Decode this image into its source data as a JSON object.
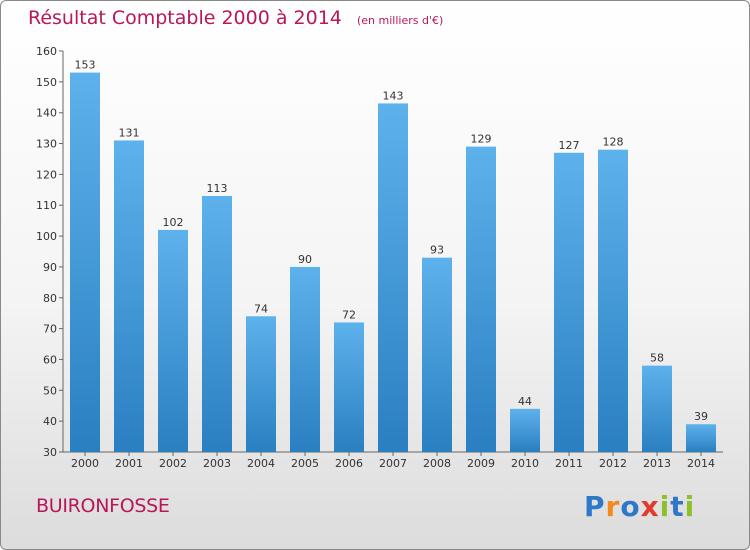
{
  "chart_data": {
    "type": "bar",
    "title": "Résultat Comptable 2000 à 2014",
    "subtitle": "(en milliers d'€)",
    "categories": [
      "2000",
      "2001",
      "2002",
      "2003",
      "2004",
      "2005",
      "2006",
      "2007",
      "2008",
      "2009",
      "2010",
      "2011",
      "2012",
      "2013",
      "2014"
    ],
    "values": [
      153,
      131,
      102,
      113,
      74,
      90,
      72,
      143,
      93,
      129,
      44,
      127,
      128,
      58,
      39
    ],
    "ylim": [
      30,
      160
    ],
    "yticks": [
      30,
      40,
      50,
      60,
      70,
      80,
      90,
      100,
      110,
      120,
      130,
      140,
      150,
      160
    ],
    "grid": false,
    "bar_color": "#4da3e0",
    "label_color": "#b8175a"
  },
  "footer": {
    "town": "BUIRONFOSSE",
    "logo": [
      "P",
      "r",
      "o",
      "x",
      "i",
      "t",
      "i"
    ],
    "logo_colors": [
      "#2f77c8",
      "#f28a1c",
      "#2f77c8",
      "#e23b2e",
      "#8fbf2a",
      "#2f77c8",
      "#8fbf2a"
    ]
  }
}
